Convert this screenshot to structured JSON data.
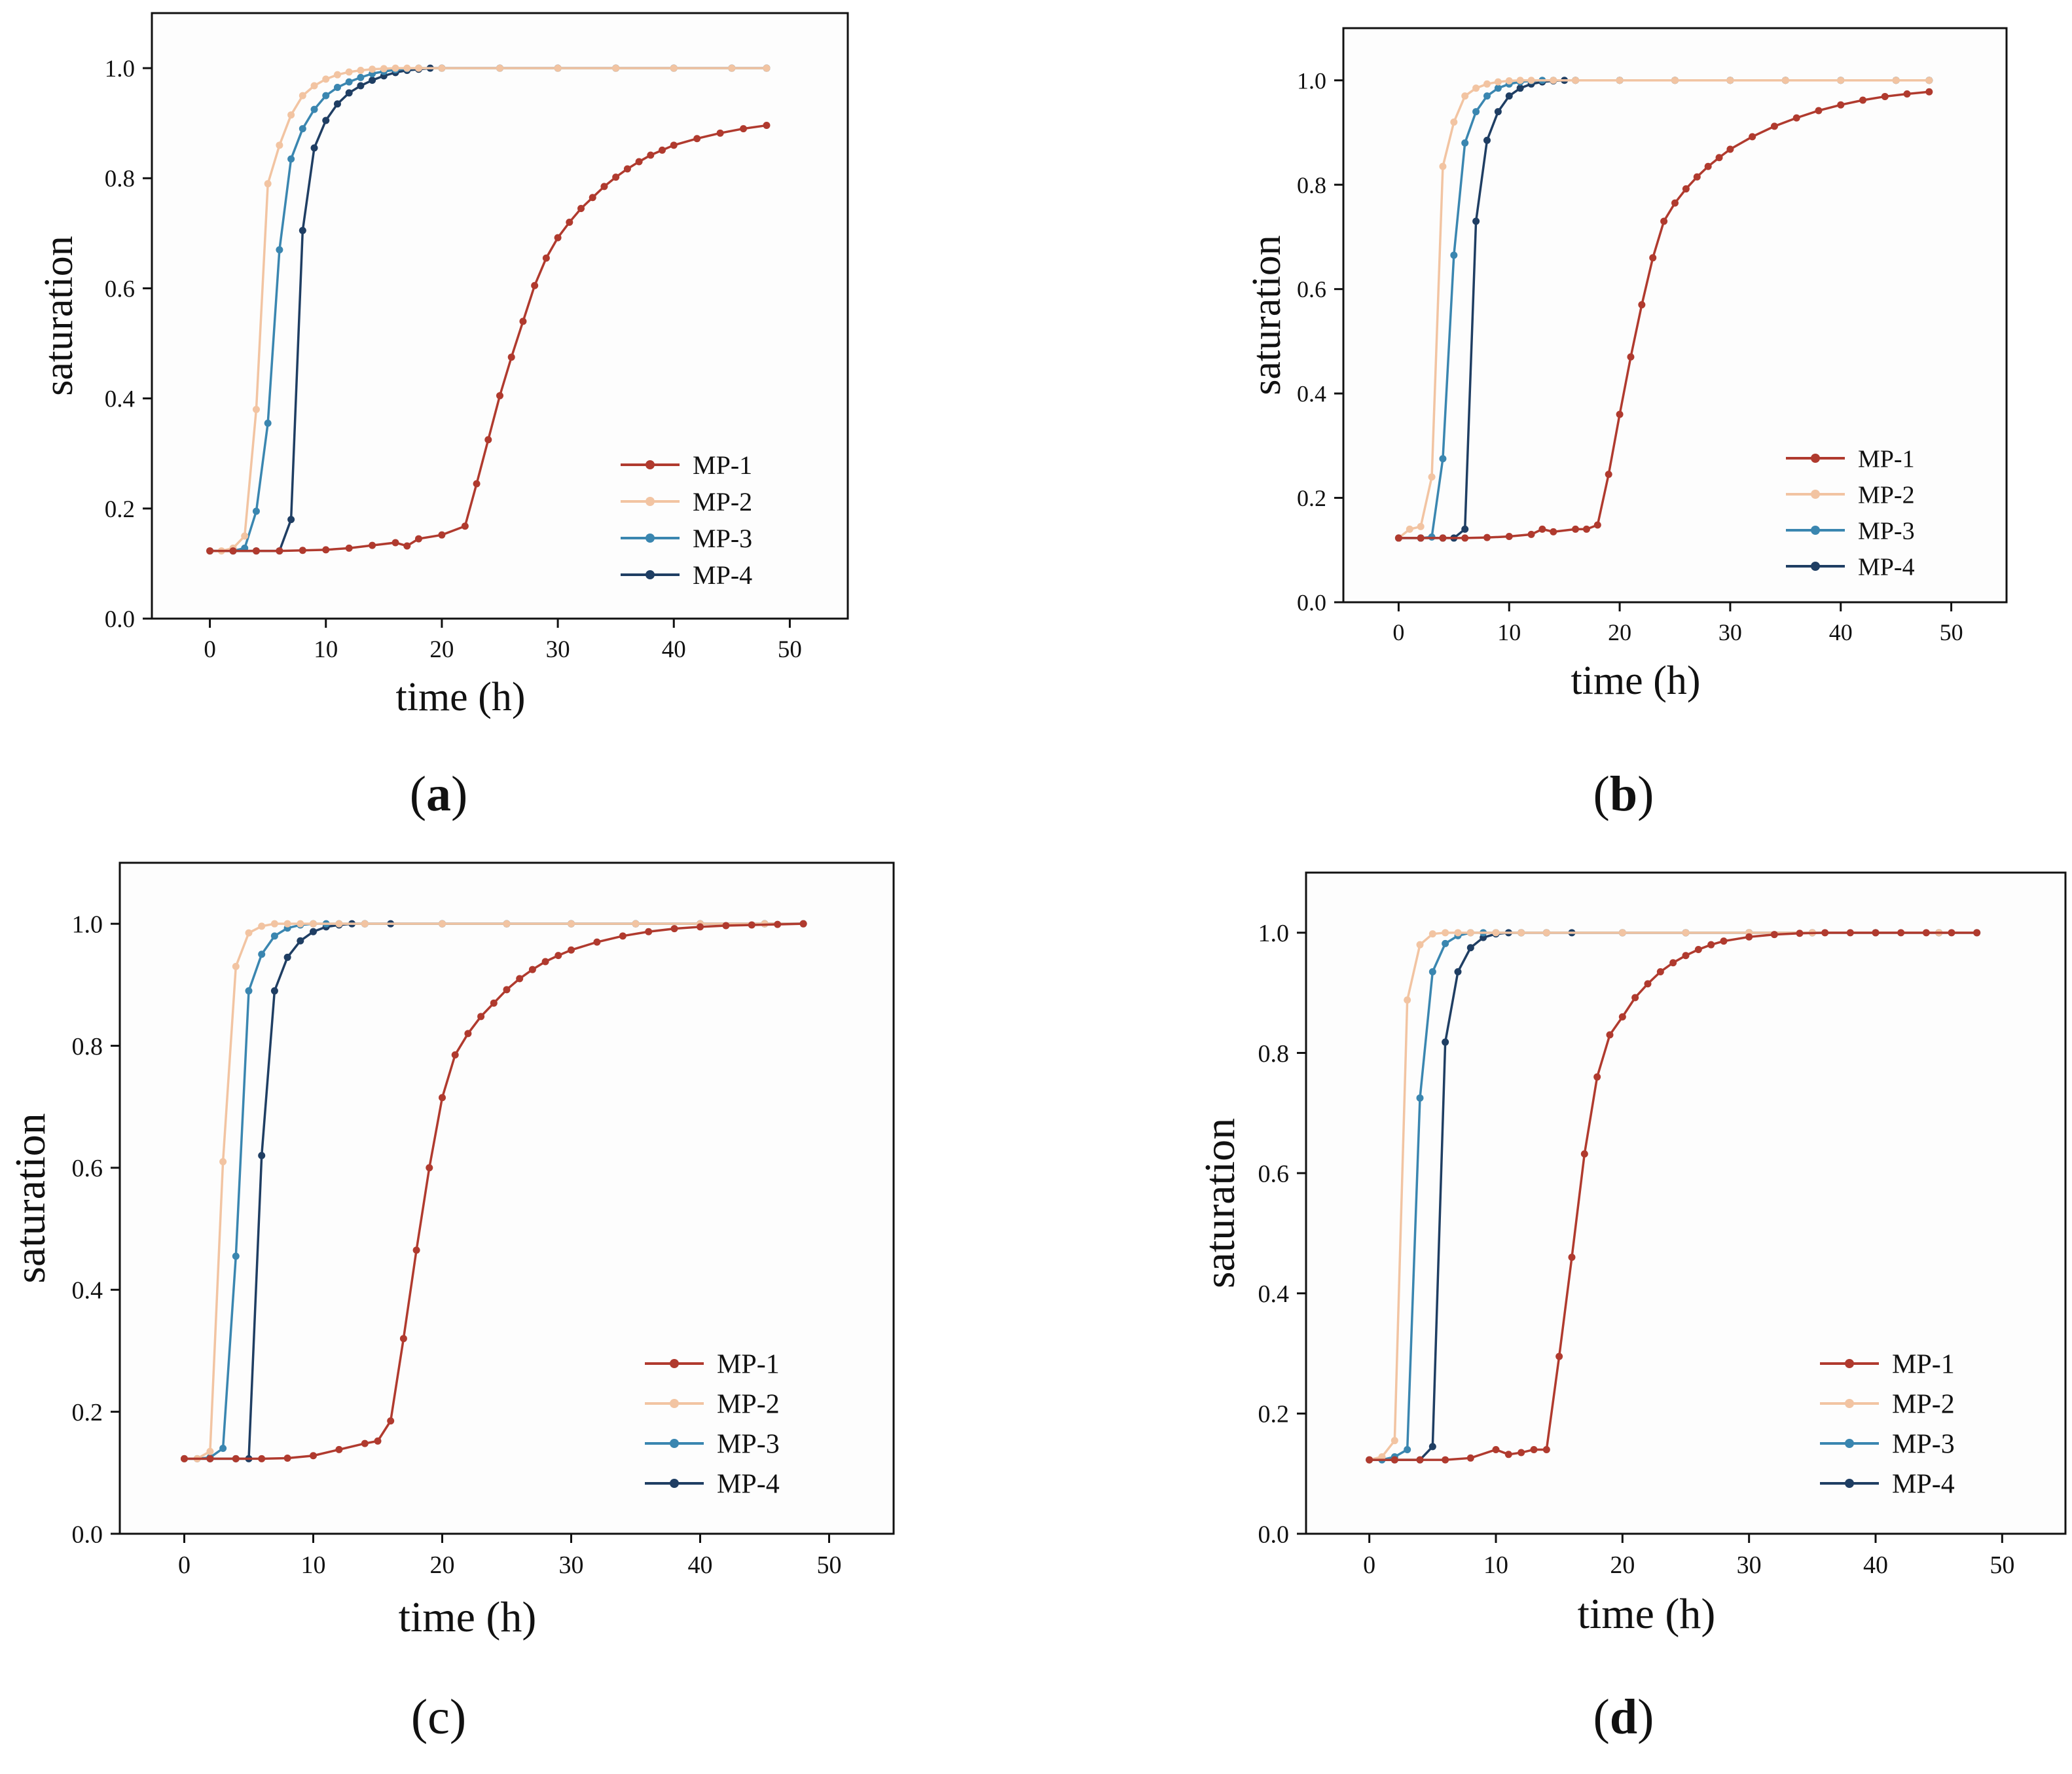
{
  "colors": {
    "MP-1": "#b03a2e",
    "MP-2": "#f2c4a2",
    "MP-3": "#3a86b0",
    "MP-4": "#1f3e63",
    "axis": "#111111",
    "panel_bg": "#fdfdfd"
  },
  "panel_labels": [
    "a",
    "b",
    "c",
    "d"
  ],
  "chart_data": [
    {
      "panel": "a",
      "type": "line",
      "xlabel": "time (h)",
      "ylabel": "saturation",
      "xlim": [
        -5,
        55
      ],
      "ylim": [
        0.0,
        1.1
      ],
      "xticks": [
        0,
        10,
        20,
        30,
        40,
        50
      ],
      "yticks": [
        0.0,
        0.2,
        0.4,
        0.6,
        0.8,
        1.0
      ],
      "xtick_labels": [
        "0",
        "10",
        "20",
        "30",
        "40",
        "50"
      ],
      "ytick_labels": [
        "0.0",
        "0.2",
        "0.4",
        "0.6",
        "0.8",
        "1.0"
      ],
      "legend_position": "bottom-right",
      "series": [
        {
          "name": "MP-1",
          "x": [
            0,
            2,
            4,
            6,
            8,
            10,
            12,
            14,
            16,
            17,
            18,
            20,
            22,
            23,
            24,
            25,
            26,
            27,
            28,
            29,
            30,
            31,
            32,
            33,
            34,
            35,
            36,
            37,
            38,
            39,
            40,
            42,
            44,
            46,
            48
          ],
          "values": [
            0.123,
            0.123,
            0.123,
            0.123,
            0.124,
            0.125,
            0.128,
            0.133,
            0.138,
            0.132,
            0.145,
            0.152,
            0.168,
            0.245,
            0.325,
            0.405,
            0.475,
            0.54,
            0.605,
            0.655,
            0.692,
            0.72,
            0.745,
            0.765,
            0.785,
            0.802,
            0.817,
            0.83,
            0.842,
            0.851,
            0.86,
            0.872,
            0.882,
            0.89,
            0.896
          ]
        },
        {
          "name": "MP-2",
          "x": [
            0,
            1,
            2,
            3,
            4,
            5,
            6,
            7,
            8,
            9,
            10,
            11,
            12,
            13,
            14,
            15,
            16,
            17,
            18,
            20,
            25,
            30,
            35,
            40,
            45,
            48
          ],
          "values": [
            0.123,
            0.123,
            0.128,
            0.15,
            0.38,
            0.79,
            0.86,
            0.915,
            0.95,
            0.968,
            0.98,
            0.988,
            0.993,
            0.996,
            0.998,
            0.999,
            1.0,
            1.0,
            1.0,
            1.0,
            1.0,
            1.0,
            1.0,
            1.0,
            1.0,
            1.0
          ]
        },
        {
          "name": "MP-3",
          "x": [
            0,
            2,
            3,
            4,
            5,
            6,
            7,
            8,
            9,
            10,
            11,
            12,
            13,
            14,
            15,
            16,
            17,
            18,
            20,
            25,
            30,
            35,
            40,
            45,
            48
          ],
          "values": [
            0.123,
            0.123,
            0.128,
            0.195,
            0.355,
            0.67,
            0.835,
            0.89,
            0.925,
            0.95,
            0.965,
            0.975,
            0.983,
            0.99,
            0.994,
            0.997,
            0.999,
            1.0,
            1.0,
            1.0,
            1.0,
            1.0,
            1.0,
            1.0,
            1.0
          ]
        },
        {
          "name": "MP-4",
          "x": [
            0,
            2,
            4,
            6,
            7,
            8,
            9,
            10,
            11,
            12,
            13,
            14,
            15,
            16,
            17,
            18,
            19,
            20,
            25,
            30,
            35,
            40,
            45,
            48
          ],
          "values": [
            0.123,
            0.123,
            0.123,
            0.123,
            0.18,
            0.705,
            0.855,
            0.905,
            0.935,
            0.955,
            0.968,
            0.978,
            0.986,
            0.992,
            0.996,
            0.998,
            1.0,
            1.0,
            1.0,
            1.0,
            1.0,
            1.0,
            1.0,
            1.0
          ]
        }
      ]
    },
    {
      "panel": "b",
      "type": "line",
      "xlabel": "time (h)",
      "ylabel": "saturation",
      "xlim": [
        -5,
        55
      ],
      "ylim": [
        0.0,
        1.1
      ],
      "xticks": [
        0,
        10,
        20,
        30,
        40,
        50
      ],
      "yticks": [
        0.0,
        0.2,
        0.4,
        0.6,
        0.8,
        1.0
      ],
      "xtick_labels": [
        "0",
        "10",
        "20",
        "30",
        "40",
        "50"
      ],
      "ytick_labels": [
        "0.0",
        "0.2",
        "0.4",
        "0.6",
        "0.8",
        "1.0"
      ],
      "legend_position": "bottom-right",
      "series": [
        {
          "name": "MP-1",
          "x": [
            0,
            2,
            4,
            6,
            8,
            10,
            12,
            13,
            14,
            16,
            17,
            18,
            19,
            20,
            21,
            22,
            23,
            24,
            25,
            26,
            27,
            28,
            29,
            30,
            32,
            34,
            36,
            38,
            40,
            42,
            44,
            46,
            48
          ],
          "values": [
            0.123,
            0.123,
            0.123,
            0.123,
            0.124,
            0.126,
            0.13,
            0.14,
            0.135,
            0.14,
            0.14,
            0.148,
            0.245,
            0.36,
            0.47,
            0.57,
            0.66,
            0.73,
            0.765,
            0.792,
            0.815,
            0.835,
            0.852,
            0.868,
            0.892,
            0.912,
            0.928,
            0.942,
            0.953,
            0.962,
            0.969,
            0.974,
            0.978
          ]
        },
        {
          "name": "MP-2",
          "x": [
            0,
            1,
            2,
            3,
            4,
            5,
            6,
            7,
            8,
            9,
            10,
            11,
            12,
            14,
            16,
            20,
            25,
            30,
            35,
            40,
            45,
            48
          ],
          "values": [
            0.123,
            0.14,
            0.145,
            0.24,
            0.835,
            0.92,
            0.97,
            0.985,
            0.993,
            0.997,
            0.999,
            1.0,
            1.0,
            1.0,
            1.0,
            1.0,
            1.0,
            1.0,
            1.0,
            1.0,
            1.0,
            1.0
          ]
        },
        {
          "name": "MP-3",
          "x": [
            0,
            2,
            3,
            4,
            5,
            6,
            7,
            8,
            9,
            10,
            11,
            12,
            13,
            14,
            16,
            20,
            25,
            30,
            35,
            40,
            45,
            48
          ],
          "values": [
            0.123,
            0.123,
            0.125,
            0.275,
            0.665,
            0.88,
            0.94,
            0.97,
            0.985,
            0.993,
            0.997,
            0.999,
            1.0,
            1.0,
            1.0,
            1.0,
            1.0,
            1.0,
            1.0,
            1.0,
            1.0,
            1.0
          ]
        },
        {
          "name": "MP-4",
          "x": [
            0,
            2,
            4,
            5,
            6,
            7,
            8,
            9,
            10,
            11,
            12,
            13,
            14,
            15,
            16,
            20,
            25,
            30,
            35,
            40,
            45,
            48
          ],
          "values": [
            0.123,
            0.123,
            0.123,
            0.123,
            0.14,
            0.73,
            0.885,
            0.94,
            0.97,
            0.985,
            0.993,
            0.997,
            0.999,
            1.0,
            1.0,
            1.0,
            1.0,
            1.0,
            1.0,
            1.0,
            1.0,
            1.0
          ]
        }
      ]
    },
    {
      "panel": "c",
      "type": "line",
      "xlabel": "time (h)",
      "ylabel": "saturation",
      "xlim": [
        -5,
        55
      ],
      "ylim": [
        0.0,
        1.1
      ],
      "xticks": [
        0,
        10,
        20,
        30,
        40,
        50
      ],
      "yticks": [
        0.0,
        0.2,
        0.4,
        0.6,
        0.8,
        1.0
      ],
      "xtick_labels": [
        "0",
        "10",
        "20",
        "30",
        "40",
        "50"
      ],
      "ytick_labels": [
        "0.0",
        "0.2",
        "0.4",
        "0.6",
        "0.8",
        "1.0"
      ],
      "legend_position": "bottom-right",
      "series": [
        {
          "name": "MP-1",
          "x": [
            0,
            2,
            4,
            6,
            8,
            10,
            12,
            14,
            15,
            16,
            17,
            18,
            19,
            20,
            21,
            22,
            23,
            24,
            25,
            26,
            27,
            28,
            29,
            30,
            32,
            34,
            36,
            38,
            40,
            42,
            44,
            46,
            48
          ],
          "values": [
            0.123,
            0.123,
            0.123,
            0.123,
            0.124,
            0.128,
            0.138,
            0.148,
            0.152,
            0.185,
            0.32,
            0.465,
            0.6,
            0.715,
            0.785,
            0.82,
            0.848,
            0.87,
            0.892,
            0.91,
            0.925,
            0.938,
            0.948,
            0.957,
            0.97,
            0.98,
            0.987,
            0.992,
            0.995,
            0.997,
            0.998,
            0.999,
            1.0
          ]
        },
        {
          "name": "MP-2",
          "x": [
            0,
            1,
            2,
            3,
            4,
            5,
            6,
            7,
            8,
            9,
            10,
            12,
            14,
            20,
            25,
            30,
            35,
            40,
            45,
            48
          ],
          "values": [
            0.123,
            0.123,
            0.135,
            0.61,
            0.93,
            0.985,
            0.996,
            1.0,
            1.0,
            1.0,
            1.0,
            1.0,
            1.0,
            1.0,
            1.0,
            1.0,
            1.0,
            1.0,
            1.0,
            1.0
          ]
        },
        {
          "name": "MP-3",
          "x": [
            0,
            1,
            2,
            3,
            4,
            5,
            6,
            7,
            8,
            9,
            10,
            11,
            12,
            14,
            20,
            25,
            30,
            35,
            40,
            45,
            48
          ],
          "values": [
            0.123,
            0.123,
            0.125,
            0.14,
            0.455,
            0.89,
            0.95,
            0.98,
            0.993,
            0.998,
            1.0,
            1.0,
            1.0,
            1.0,
            1.0,
            1.0,
            1.0,
            1.0,
            1.0,
            1.0,
            1.0
          ]
        },
        {
          "name": "MP-4",
          "x": [
            0,
            2,
            4,
            5,
            6,
            7,
            8,
            9,
            10,
            11,
            12,
            13,
            14,
            16,
            20,
            25,
            30,
            35,
            40,
            45,
            48
          ],
          "values": [
            0.123,
            0.123,
            0.123,
            0.123,
            0.62,
            0.89,
            0.945,
            0.972,
            0.987,
            0.995,
            0.998,
            1.0,
            1.0,
            1.0,
            1.0,
            1.0,
            1.0,
            1.0,
            1.0,
            1.0,
            1.0
          ]
        }
      ]
    },
    {
      "panel": "d",
      "type": "line",
      "xlabel": "time (h)",
      "ylabel": "saturation",
      "xlim": [
        -5,
        55
      ],
      "ylim": [
        0.0,
        1.1
      ],
      "xticks": [
        0,
        10,
        20,
        30,
        40,
        50
      ],
      "yticks": [
        0.0,
        0.2,
        0.4,
        0.6,
        0.8,
        1.0
      ],
      "xtick_labels": [
        "0",
        "10",
        "20",
        "30",
        "40",
        "50"
      ],
      "ytick_labels": [
        "0.0",
        "0.2",
        "0.4",
        "0.6",
        "0.8",
        "1.0"
      ],
      "legend_position": "bottom-right",
      "series": [
        {
          "name": "MP-1",
          "x": [
            0,
            2,
            4,
            6,
            8,
            10,
            11,
            12,
            13,
            14,
            15,
            16,
            17,
            18,
            19,
            20,
            21,
            22,
            23,
            24,
            25,
            26,
            27,
            28,
            30,
            32,
            34,
            36,
            38,
            40,
            42,
            44,
            46,
            48
          ],
          "values": [
            0.123,
            0.123,
            0.123,
            0.123,
            0.126,
            0.14,
            0.132,
            0.135,
            0.14,
            0.14,
            0.295,
            0.46,
            0.632,
            0.76,
            0.83,
            0.86,
            0.892,
            0.915,
            0.935,
            0.95,
            0.962,
            0.972,
            0.98,
            0.986,
            0.993,
            0.997,
            0.999,
            1.0,
            1.0,
            1.0,
            1.0,
            1.0,
            1.0,
            1.0
          ]
        },
        {
          "name": "MP-2",
          "x": [
            0,
            1,
            2,
            3,
            4,
            5,
            6,
            7,
            8,
            10,
            12,
            14,
            20,
            25,
            30,
            35,
            40,
            45,
            48
          ],
          "values": [
            0.123,
            0.128,
            0.155,
            0.888,
            0.98,
            0.998,
            1.0,
            1.0,
            1.0,
            1.0,
            1.0,
            1.0,
            1.0,
            1.0,
            1.0,
            1.0,
            1.0,
            1.0,
            1.0
          ]
        },
        {
          "name": "MP-3",
          "x": [
            0,
            1,
            2,
            3,
            4,
            5,
            6,
            7,
            8,
            9,
            10,
            12,
            14,
            20,
            25,
            30,
            35,
            40,
            45,
            48
          ],
          "values": [
            0.123,
            0.123,
            0.128,
            0.14,
            0.725,
            0.935,
            0.982,
            0.995,
            1.0,
            1.0,
            1.0,
            1.0,
            1.0,
            1.0,
            1.0,
            1.0,
            1.0,
            1.0,
            1.0,
            1.0
          ]
        },
        {
          "name": "MP-4",
          "x": [
            0,
            2,
            4,
            5,
            6,
            7,
            8,
            9,
            10,
            11,
            12,
            14,
            16,
            20,
            25,
            30,
            35,
            40,
            45,
            48
          ],
          "values": [
            0.123,
            0.123,
            0.123,
            0.145,
            0.818,
            0.935,
            0.975,
            0.992,
            0.998,
            1.0,
            1.0,
            1.0,
            1.0,
            1.0,
            1.0,
            1.0,
            1.0,
            1.0,
            1.0,
            1.0
          ]
        }
      ]
    }
  ]
}
